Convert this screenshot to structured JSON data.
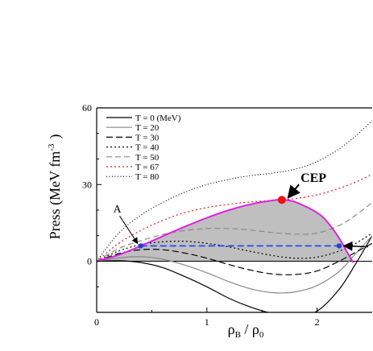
{
  "chart_data": {
    "type": "line",
    "xlabel_main": "ρ",
    "xlabel_sub1": "B",
    "xlabel_sep": " / ρ",
    "xlabel_sub2": "0",
    "ylabel_main": "Press (MeV fm",
    "ylabel_sup": "-3",
    "ylabel_close": ")",
    "xlim": [
      0,
      2.5
    ],
    "ylim": [
      -20,
      60
    ],
    "x_ticks": [
      0,
      1,
      2
    ],
    "y_ticks": [
      0,
      30,
      60
    ],
    "x_tick_labels": [
      "0",
      "1",
      "2"
    ],
    "y_tick_labels": [
      "0",
      "30",
      "60"
    ],
    "legend_position": "top-left",
    "series": [
      {
        "name": "T = 0  (MeV)",
        "color": "#000000",
        "dash": "solid",
        "x": [
          0,
          0.2,
          0.4,
          0.6,
          0.8,
          1.0,
          1.2,
          1.4,
          1.6,
          1.8,
          2.0,
          2.2,
          2.35,
          2.5
        ],
        "y": [
          0,
          0.2,
          -0.5,
          -2.5,
          -6,
          -10,
          -14.5,
          -18,
          -20.5,
          -21.5,
          -19.5,
          -11,
          -1,
          10
        ]
      },
      {
        "name": "T = 20",
        "color": "#888888",
        "dash": "solid",
        "x": [
          0,
          0.2,
          0.4,
          0.6,
          0.8,
          1.0,
          1.2,
          1.4,
          1.6,
          1.8,
          2.0,
          2.2,
          2.35,
          2.5
        ],
        "y": [
          0,
          1.3,
          1.8,
          0.8,
          -1.5,
          -4.5,
          -8,
          -10.8,
          -12.3,
          -12,
          -9.5,
          -4,
          3,
          10
        ]
      },
      {
        "name": "T = 30",
        "color": "#000000",
        "dash": "8,4",
        "x": [
          0,
          0.2,
          0.4,
          0.6,
          0.8,
          1.0,
          1.2,
          1.4,
          1.6,
          1.8,
          2.0,
          2.2,
          2.35,
          2.5
        ],
        "y": [
          0,
          3,
          4.5,
          4.5,
          3.2,
          1.2,
          -1.3,
          -3.5,
          -5,
          -5.2,
          -3.8,
          0,
          3.5,
          7
        ]
      },
      {
        "name": "T = 40",
        "color": "#000000",
        "dash": "2,3",
        "x": [
          0,
          0.2,
          0.4,
          0.6,
          0.8,
          1.0,
          1.2,
          1.4,
          1.6,
          1.8,
          2.0,
          2.2,
          2.35,
          2.5
        ],
        "y": [
          0,
          4,
          6.5,
          7.6,
          7.8,
          7,
          5.6,
          3.8,
          2.2,
          1.2,
          1.6,
          4,
          7,
          11
        ]
      },
      {
        "name": "T = 50",
        "color": "#888888",
        "dash": "7,4",
        "x": [
          0,
          0.2,
          0.4,
          0.6,
          0.8,
          1.0,
          1.2,
          1.4,
          1.6,
          1.8,
          2.0,
          2.2,
          2.35,
          2.5
        ],
        "y": [
          0,
          5,
          8,
          10.5,
          12,
          12.8,
          12.8,
          12.2,
          11.2,
          10.6,
          11,
          14,
          18,
          23
        ]
      },
      {
        "name": "T = 67",
        "color": "#e02020",
        "dash": "2,3",
        "x": [
          0,
          0.2,
          0.4,
          0.6,
          0.8,
          1.0,
          1.2,
          1.4,
          1.6,
          1.8,
          2.0,
          2.2,
          2.35,
          2.5
        ],
        "y": [
          0,
          7,
          12,
          16,
          19,
          21,
          22.3,
          23.2,
          23.8,
          24.5,
          26,
          28.5,
          31,
          34
        ]
      },
      {
        "name": "T = 80",
        "color": "#000000",
        "dash": "1,2.5",
        "x": [
          0,
          0.2,
          0.4,
          0.6,
          0.8,
          1.0,
          1.2,
          1.4,
          1.6,
          1.8,
          2.0,
          2.2,
          2.35,
          2.5
        ],
        "y": [
          0,
          11,
          18,
          23,
          27,
          30,
          32,
          33.5,
          34.5,
          36,
          39,
          44,
          49,
          55
        ]
      }
    ],
    "coexistence_curve": {
      "color": "#dd22dd",
      "fill": "#bfbfbf",
      "x": [
        0.2,
        0.4,
        0.6,
        0.8,
        1.0,
        1.2,
        1.4,
        1.6,
        1.68,
        1.8,
        2.0,
        2.1,
        2.2,
        2.3,
        2.33
      ],
      "y": [
        2.5,
        6,
        9.8,
        13.5,
        17,
        20,
        22.3,
        23.8,
        24,
        23.2,
        19,
        15,
        9,
        1.5,
        -0.5
      ]
    },
    "isotherm_line": {
      "color": "#1f3fff",
      "dash": "8,4",
      "y": 6,
      "x_start": 0.4,
      "x_end": 2.2
    },
    "points": [
      {
        "x": 0.4,
        "y": 6,
        "color": "#2b3fd6"
      },
      {
        "x": 2.2,
        "y": 6,
        "color": "#2b3fd6"
      },
      {
        "x": 1.68,
        "y": 24,
        "color": "#ee1111"
      }
    ],
    "annotations": [
      {
        "text": "CEP",
        "x": 1.85,
        "y": 31
      },
      {
        "text": "A",
        "x": 0.15,
        "y": 19
      }
    ]
  }
}
